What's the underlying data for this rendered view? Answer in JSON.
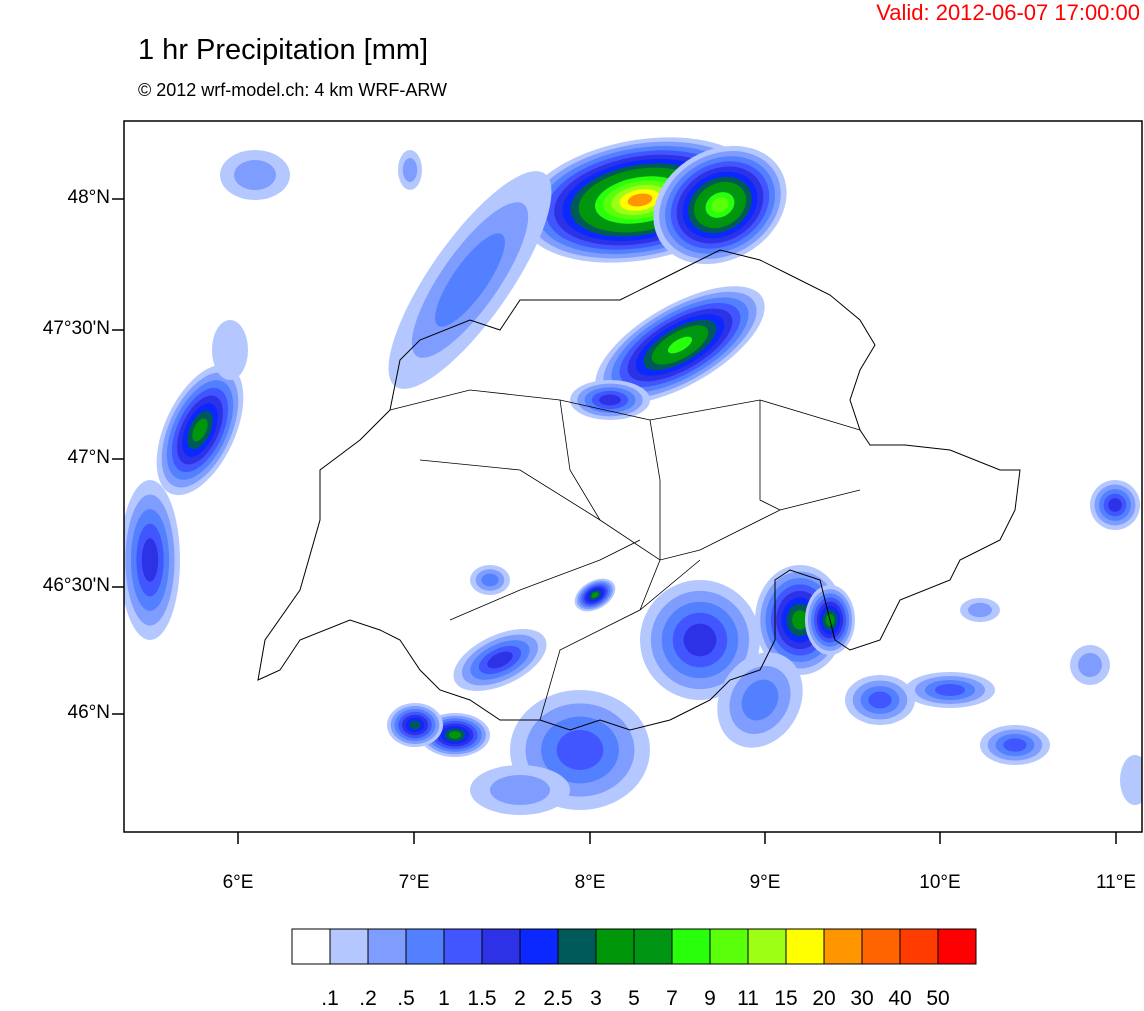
{
  "header": {
    "valid": "Valid: 2012-06-07 17:00:00",
    "title": "1 hr Precipitation [mm]",
    "subtitle": "© 2012 wrf-model.ch: 4 km WRF-ARW"
  },
  "axes": {
    "lat_ticks": [
      "48°N",
      "47°30'N",
      "47°N",
      "46°30'N",
      "46°N"
    ],
    "lon_ticks": [
      "6°E",
      "7°E",
      "8°E",
      "9°E",
      "10°E",
      "11°E"
    ]
  },
  "colorbar": {
    "labels": [
      ".1",
      ".2",
      ".5",
      "1",
      "1.5",
      "2",
      "2.5",
      "3",
      "5",
      "7",
      "9",
      "11",
      "15",
      "20",
      "30",
      "40",
      "50"
    ],
    "colors": [
      "#ffffff",
      "#b4c8ff",
      "#7f9cff",
      "#5280ff",
      "#4256ff",
      "#2e32e6",
      "#0a28ff",
      "#005a5a",
      "#00960a",
      "#009614",
      "#28ff0a",
      "#5aff0a",
      "#9cff14",
      "#ffff00",
      "#ff9600",
      "#ff6400",
      "#ff3c00",
      "#ff0000"
    ]
  }
}
